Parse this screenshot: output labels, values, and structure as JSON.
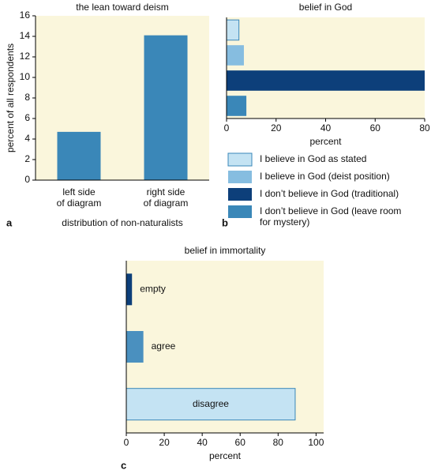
{
  "chart_data": [
    {
      "type": "bar",
      "title": "the lean toward deism",
      "panel_label": "a",
      "categories": [
        "left side\nof diagram",
        "right side\nof diagram"
      ],
      "values": [
        4.7,
        14.1
      ],
      "color": "#3a87b8",
      "ylim": [
        0,
        16
      ],
      "yticks": [
        0,
        2,
        4,
        6,
        8,
        10,
        12,
        14,
        16
      ],
      "ylabel": "percent of all respondents",
      "xlabel": "distribution of non-naturalists",
      "background": "#faf6dc"
    },
    {
      "type": "hbar",
      "title": "belief in God",
      "panel_label": "b",
      "categories": [
        "I believe in God as stated",
        "I believe in God (deist position)",
        "I don’t believe in God (traditional)",
        "I don’t believe in God (leave room\nfor mystery)"
      ],
      "values": [
        5,
        7,
        80,
        8
      ],
      "colors": [
        "#c4e3f3",
        "#86bde0",
        "#0d3f7a",
        "#3a87b8"
      ],
      "xlim": [
        0,
        80
      ],
      "xticks": [
        0,
        20,
        40,
        60,
        80
      ],
      "xlabel": "percent",
      "legend": "below",
      "background": "#faf6dc"
    },
    {
      "type": "hbar",
      "title": "belief in immortality",
      "panel_label": "c",
      "categories": [
        "empty",
        "agree",
        "disagree"
      ],
      "values": [
        3,
        9,
        89
      ],
      "colors": [
        "#0d3f7a",
        "#4a90bf",
        "#c4e3f3"
      ],
      "xlim": [
        0,
        104
      ],
      "xticks": [
        0,
        20,
        40,
        60,
        80,
        100
      ],
      "xlabel": "percent",
      "bar_labels": true,
      "background": "#faf6dc"
    }
  ]
}
